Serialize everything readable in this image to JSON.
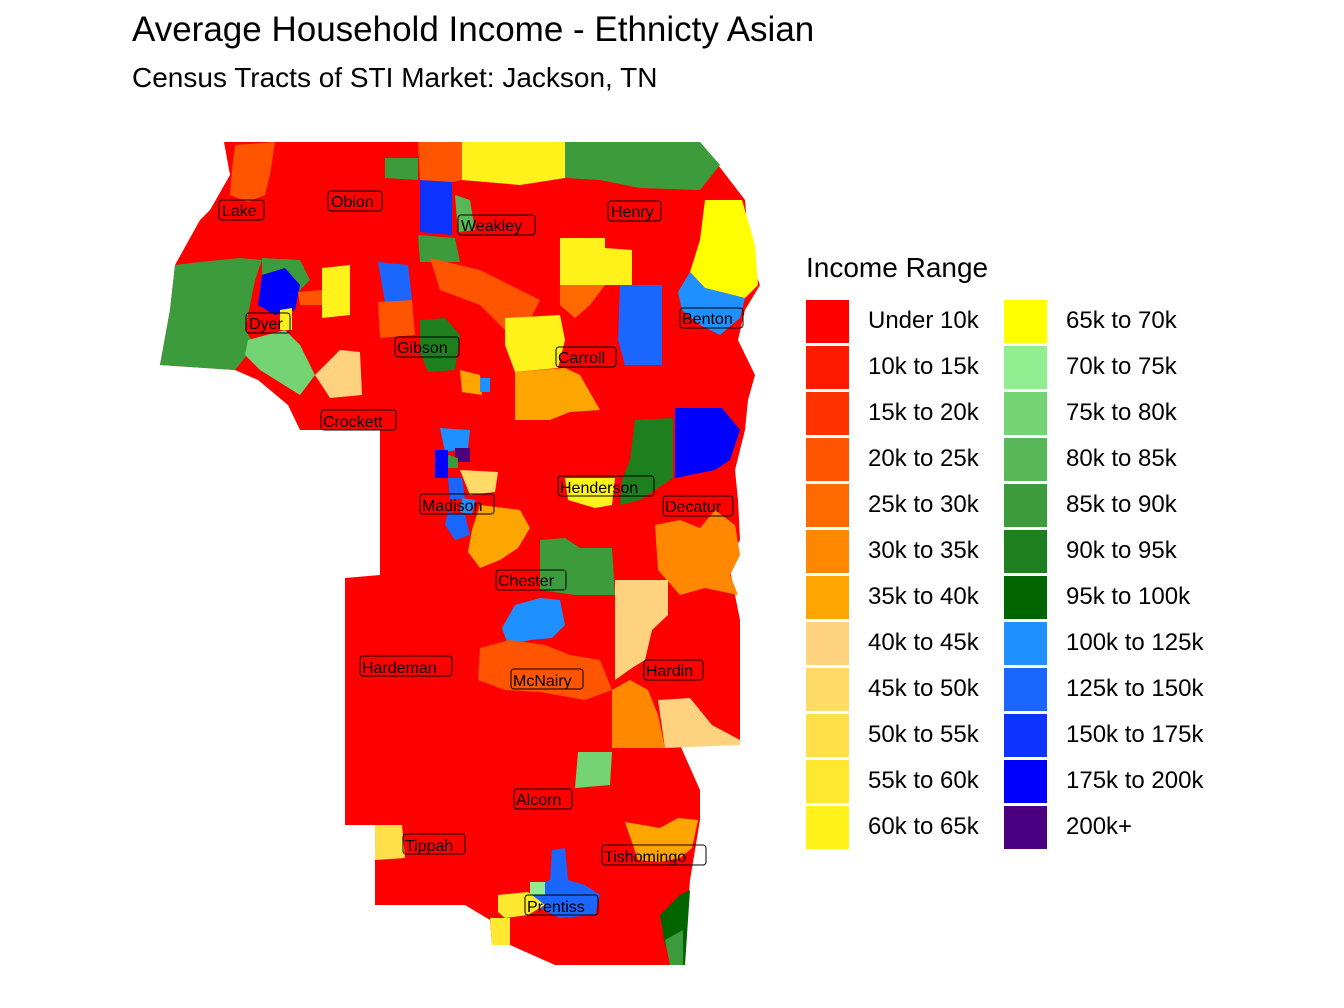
{
  "title": "Average Household Income - Ethnicty Asian",
  "subtitle": "Census Tracts of STI Market: Jackson, TN",
  "legend": {
    "title": "Income Range",
    "items": [
      {
        "label": "Under 10k",
        "color": "#FF0000"
      },
      {
        "label": "10k to 15k",
        "color": "#FF1A00"
      },
      {
        "label": "15k to 20k",
        "color": "#FF3300"
      },
      {
        "label": "20k to 25k",
        "color": "#FF5500"
      },
      {
        "label": "25k to 30k",
        "color": "#FF6A00"
      },
      {
        "label": "30k to 35k",
        "color": "#FF8800"
      },
      {
        "label": "35k to 40k",
        "color": "#FFA500"
      },
      {
        "label": "40k to 45k",
        "color": "#FFD27F"
      },
      {
        "label": "45k to 50k",
        "color": "#FFDA66"
      },
      {
        "label": "50k to 55k",
        "color": "#FFE04A"
      },
      {
        "label": "55k to 60k",
        "color": "#FFE830"
      },
      {
        "label": "60k to 65k",
        "color": "#FFF21A"
      },
      {
        "label": "65k to 70k",
        "color": "#FFFF00"
      },
      {
        "label": "70k to 75k",
        "color": "#90EE90"
      },
      {
        "label": "75k to 80k",
        "color": "#74D474"
      },
      {
        "label": "80k to 85k",
        "color": "#58B858"
      },
      {
        "label": "85k to 90k",
        "color": "#3C9C3C"
      },
      {
        "label": "90k to 95k",
        "color": "#1E7F1E"
      },
      {
        "label": "95k to 100k",
        "color": "#006400"
      },
      {
        "label": "100k to 125k",
        "color": "#1E90FF"
      },
      {
        "label": "125k to 150k",
        "color": "#1A66FF"
      },
      {
        "label": "150k to 175k",
        "color": "#0D33FF"
      },
      {
        "label": "175k to 200k",
        "color": "#0000FF"
      },
      {
        "label": "200k+",
        "color": "#4B0082"
      }
    ]
  },
  "counties": [
    "Lake",
    "Obion",
    "Weakley",
    "Henry",
    "Dyer",
    "Gibson",
    "Carroll",
    "Benton",
    "Crockett",
    "Madison",
    "Henderson",
    "Decatur",
    "Chester",
    "Hardeman",
    "McNairy",
    "Hardin",
    "Alcorn",
    "Tippah",
    "Tishomingo",
    "Prentiss"
  ]
}
